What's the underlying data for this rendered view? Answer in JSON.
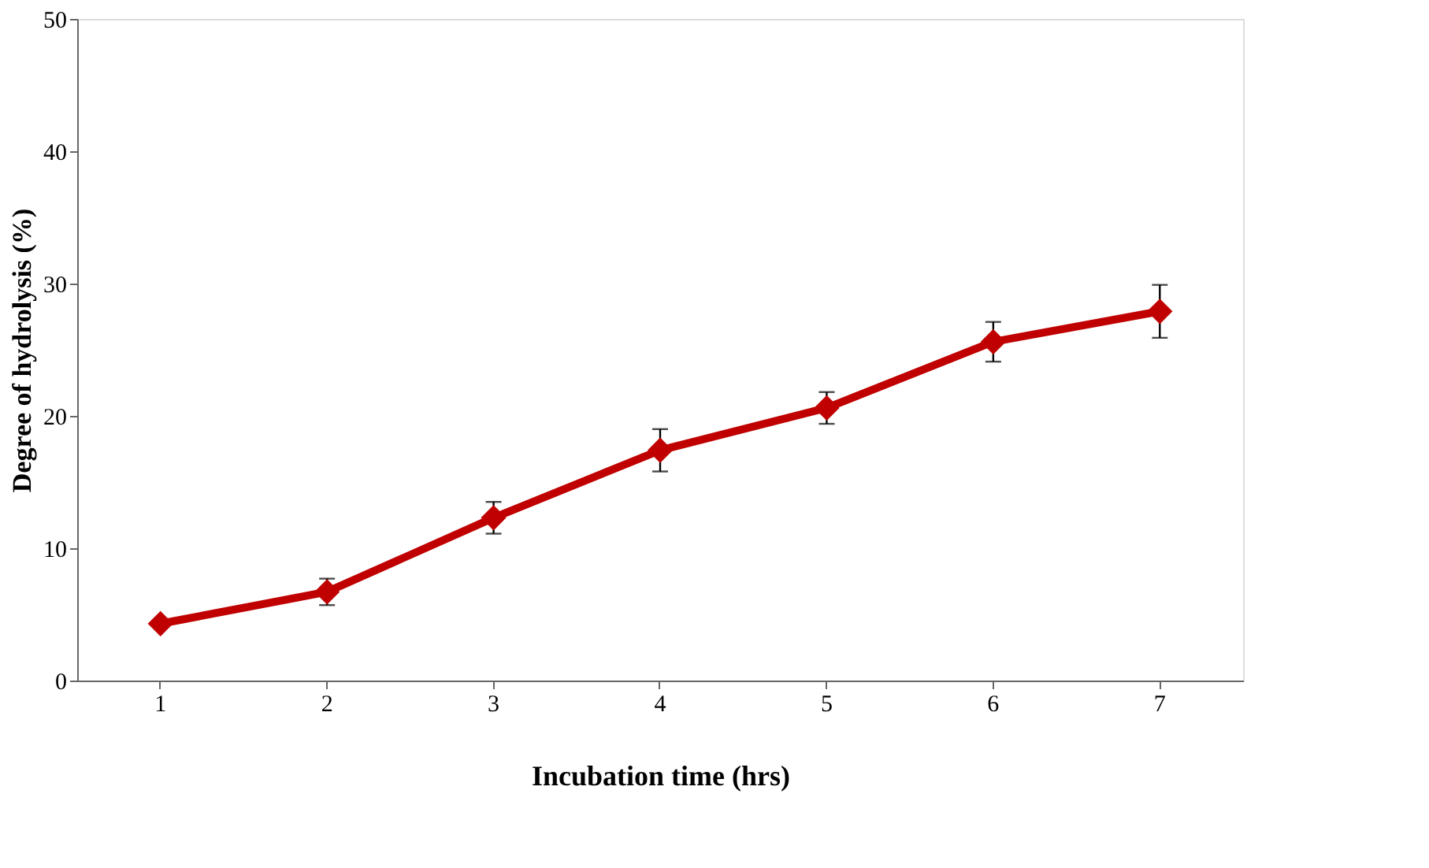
{
  "chart_data": {
    "type": "line",
    "xlabel": "Incubation time (hrs)",
    "ylabel": "Degree of hydrolysis (%)",
    "categories": [
      "1",
      "2",
      "3",
      "4",
      "5",
      "6",
      "7"
    ],
    "series": [
      {
        "color": "#c00000",
        "values": [
          4.3,
          6.7,
          12.3,
          17.4,
          20.6,
          25.6,
          27.9
        ],
        "errors": [
          null,
          1.0,
          1.2,
          1.6,
          1.2,
          1.5,
          2.0
        ]
      }
    ],
    "ylim": [
      0,
      50
    ],
    "yticks": [
      0,
      10,
      20,
      30,
      40,
      50
    ],
    "grid": false,
    "marker": "diamond",
    "line_style": "solid"
  }
}
